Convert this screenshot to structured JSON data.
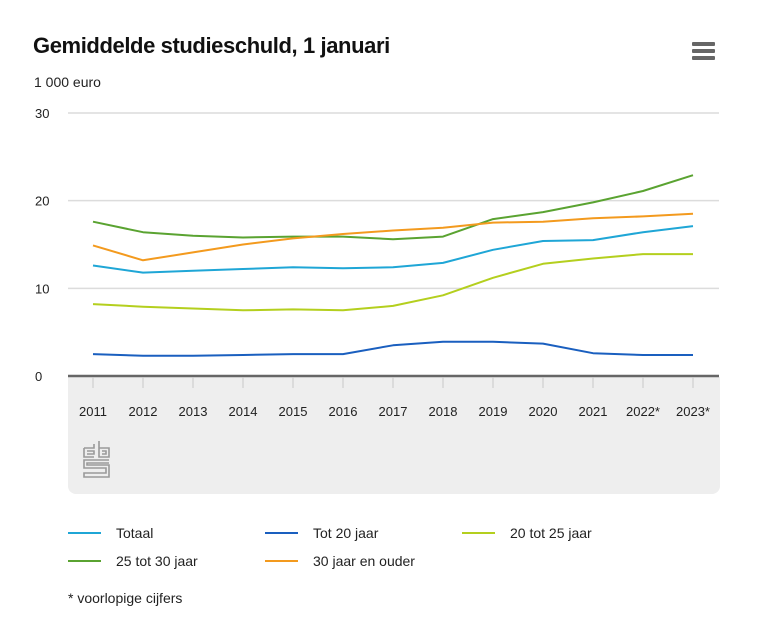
{
  "header": {
    "title": "Gemiddelde studieschuld, 1 januari",
    "unit_label": "1 000 euro",
    "menu_icon": "hamburger-menu-icon"
  },
  "footnote": "* voorlopige cijfers",
  "logo": "cbs-logo",
  "chart_data": {
    "type": "line",
    "title": "Gemiddelde studieschuld, 1 januari",
    "xlabel": "",
    "ylabel": "1 000 euro",
    "ylim": [
      0,
      30
    ],
    "yticks": [
      0,
      10,
      20,
      30
    ],
    "grid": true,
    "legend_position": "bottom",
    "categories": [
      "2011",
      "2012",
      "2013",
      "2014",
      "2015",
      "2016",
      "2017",
      "2018",
      "2019",
      "2020",
      "2021",
      "2022*",
      "2023*"
    ],
    "series": [
      {
        "name": "Totaal",
        "color": "#1fa6d6",
        "values": [
          12.6,
          11.8,
          12.0,
          12.2,
          12.4,
          12.3,
          12.4,
          12.9,
          14.4,
          15.4,
          15.5,
          16.4,
          17.1
        ]
      },
      {
        "name": "Tot 20 jaar",
        "color": "#1a5fbf",
        "values": [
          2.5,
          2.3,
          2.3,
          2.4,
          2.5,
          2.5,
          3.5,
          3.9,
          3.9,
          3.7,
          2.6,
          2.4,
          2.4
        ]
      },
      {
        "name": "20 tot 25 jaar",
        "color": "#b4cf1e",
        "values": [
          8.2,
          7.9,
          7.7,
          7.5,
          7.6,
          7.5,
          8.0,
          9.2,
          11.2,
          12.8,
          13.4,
          13.9,
          13.9
        ]
      },
      {
        "name": "25 tot 30 jaar",
        "color": "#5aa331",
        "values": [
          17.6,
          16.4,
          16.0,
          15.8,
          15.9,
          15.9,
          15.6,
          15.9,
          17.9,
          18.7,
          19.8,
          21.1,
          22.9
        ]
      },
      {
        "name": "30 jaar en ouder",
        "color": "#f39a1e",
        "values": [
          14.9,
          13.2,
          14.1,
          15.0,
          15.7,
          16.2,
          16.6,
          16.9,
          17.5,
          17.6,
          18.0,
          18.2,
          18.5
        ]
      }
    ]
  }
}
